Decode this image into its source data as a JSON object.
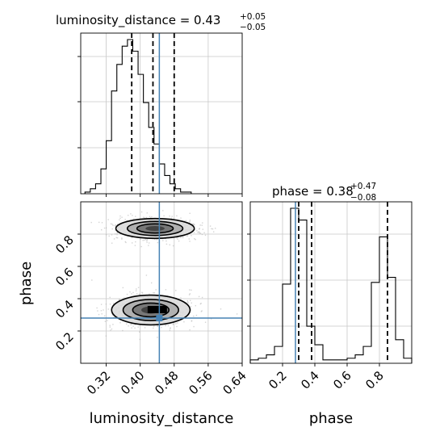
{
  "chart_data": {
    "type": "corner",
    "parameters": [
      "luminosity_distance",
      "phase"
    ],
    "truth": {
      "luminosity_distance": 0.445,
      "phase": 0.28
    },
    "truth_color": "#4682b4",
    "grid": true,
    "panels": [
      {
        "id": "luminosity_distance_hist",
        "type": "histogram",
        "title_prefix": "luminosity_distance = 0.43",
        "title_plus": "+0.05",
        "title_minus": "−0.05",
        "x_range": [
          0.26,
          0.64
        ],
        "quantiles": [
          0.38,
          0.43,
          0.48
        ],
        "bin_width": 0.0125,
        "bin_edges_start": 0.27,
        "heights": [
          0.01,
          0.03,
          0.06,
          0.15,
          0.32,
          0.62,
          0.78,
          0.89,
          0.93,
          0.86,
          0.72,
          0.55,
          0.4,
          0.3,
          0.18,
          0.11,
          0.06,
          0.03,
          0.01,
          0.01
        ]
      },
      {
        "id": "phase_hist",
        "type": "histogram",
        "title_prefix": "phase = 0.38",
        "title_plus": "+0.47",
        "title_minus": "−0.08",
        "x_range": [
          0.0,
          1.0
        ],
        "xticks": [
          "0.2",
          "0.4",
          "0.6",
          "0.8"
        ],
        "quantiles": [
          0.3,
          0.38,
          0.85
        ],
        "bin_width": 0.05,
        "bin_edges_start": 0.0,
        "heights": [
          0.02,
          0.03,
          0.05,
          0.1,
          0.47,
          0.92,
          0.85,
          0.22,
          0.11,
          0.02,
          0.02,
          0.02,
          0.03,
          0.05,
          0.1,
          0.48,
          0.75,
          0.51,
          0.14,
          0.03
        ]
      },
      {
        "id": "phase_vs_luminosity_distance",
        "type": "2d-density",
        "x_range": [
          0.26,
          0.64
        ],
        "y_range": [
          0.0,
          1.0
        ],
        "xticks": [
          "0.32",
          "0.40",
          "0.48",
          "0.56",
          "0.64"
        ],
        "yticks": [
          "0.2",
          "0.4",
          "0.6",
          "0.8"
        ],
        "xlabel": "luminosity_distance",
        "ylabel": "phase",
        "modes": [
          {
            "x": 0.425,
            "y": 0.33,
            "sx": 0.045,
            "sy": 0.045
          },
          {
            "x": 0.435,
            "y": 0.835,
            "sx": 0.045,
            "sy": 0.03
          }
        ],
        "contour_levels": 3
      }
    ]
  }
}
